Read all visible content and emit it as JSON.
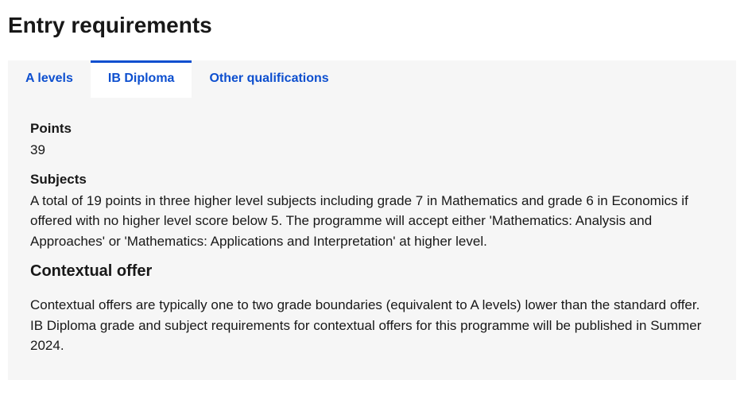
{
  "heading": "Entry requirements",
  "tabs": [
    {
      "label": "A levels"
    },
    {
      "label": "IB Diploma"
    },
    {
      "label": "Other qualifications"
    }
  ],
  "active_tab_index": 1,
  "colors": {
    "link": "#0d4fcf",
    "panel_bg": "#f6f6f6",
    "text": "#181818"
  },
  "ib": {
    "points_label": "Points",
    "points_value": "39",
    "subjects_label": "Subjects",
    "subjects_text": "A total of 19 points in three higher level subjects including grade 7 in Mathematics and grade 6 in Economics if offered with no higher level score below 5. The programme will accept either 'Mathematics: Analysis and Approaches' or 'Mathematics: Applications and Interpretation' at higher level.",
    "contextual_heading": "Contextual offer",
    "contextual_text": "Contextual offers are typically one to two grade boundaries (equivalent to A levels) lower than the standard offer. IB Diploma grade and subject requirements for contextual offers for this programme will be published in Summer 2024."
  }
}
